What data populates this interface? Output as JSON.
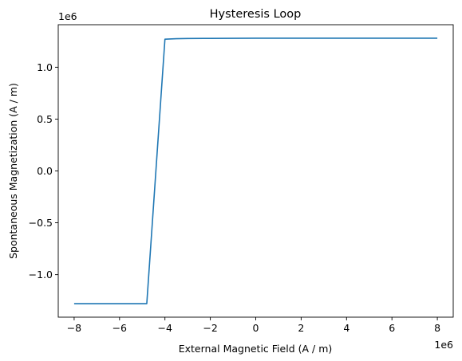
{
  "chart_data": {
    "type": "line",
    "title": "Hysteresis Loop",
    "xlabel": "External Magnetic Field (A / m)",
    "ylabel": "Spontaneous Magnetization (A / m)",
    "x_offset_label": "1e6",
    "y_offset_label": "1e6",
    "xlim": [
      -8.7,
      8.7
    ],
    "ylim": [
      -1.41,
      1.41
    ],
    "xticks": [
      -8,
      -6,
      -4,
      -2,
      0,
      2,
      4,
      6,
      8
    ],
    "xtick_labels": [
      "−8",
      "−6",
      "−4",
      "−2",
      "0",
      "2",
      "4",
      "6",
      "8"
    ],
    "yticks": [
      -1.0,
      -0.5,
      0.0,
      0.5,
      1.0
    ],
    "ytick_labels": [
      "−1.0",
      "−0.5",
      "0.0",
      "0.5",
      "1.0"
    ],
    "grid": false,
    "series": [
      {
        "color": "#1f77b4",
        "x": [
          -8.0,
          -6.0,
          -4.8,
          -4.0,
          -3.5,
          -3.0,
          -2.0,
          0.0,
          2.0,
          4.0,
          6.0,
          8.0
        ],
        "y": [
          -1.28,
          -1.28,
          -1.28,
          1.27,
          1.275,
          1.277,
          1.278,
          1.28,
          1.28,
          1.28,
          1.28,
          1.28
        ]
      }
    ]
  }
}
